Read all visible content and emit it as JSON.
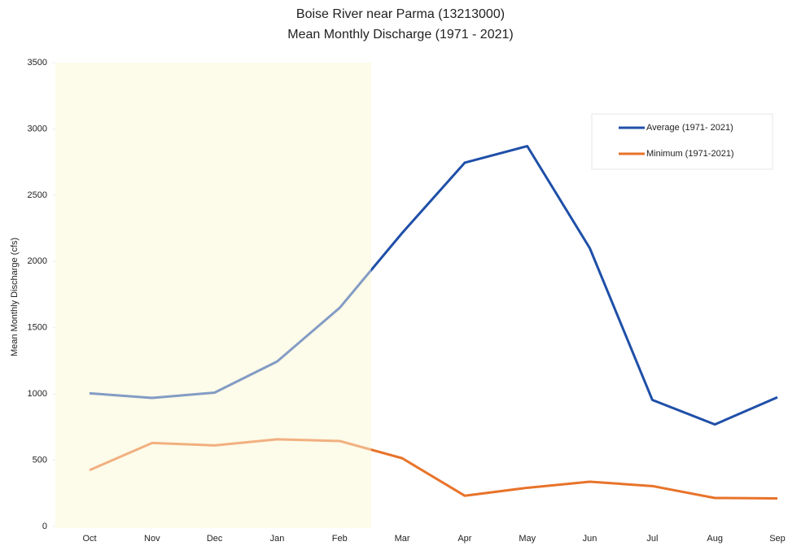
{
  "chart_data": {
    "type": "line",
    "title": "Boise River near Parma (13213000)",
    "subtitle": "Mean Monthly Discharge (1971 - 2021)",
    "y_label": "Mean Monthly Discharge (cfs)",
    "categories": [
      "Oct",
      "Nov",
      "Dec",
      "Jan",
      "Feb",
      "Mar",
      "Apr",
      "May",
      "Jun",
      "Jul",
      "Aug",
      "Sep"
    ],
    "series": [
      {
        "name": "Average (1971- 2021)",
        "color": "#1f4fa8",
        "values": [
          1005,
          970,
          1010,
          1245,
          1650,
          2215,
          2745,
          2870,
          2100,
          955,
          770,
          975
        ]
      },
      {
        "name": "Minimum (1971-2021)",
        "color": "#e8732a",
        "values": [
          425,
          630,
          612,
          658,
          645,
          515,
          232,
          292,
          338,
          305,
          215,
          212
        ]
      }
    ],
    "ylim": [
      0,
      3500
    ],
    "yticks": [
      0,
      500,
      1000,
      1500,
      2000,
      2500,
      3000,
      3500
    ],
    "grid": false,
    "legend": "upper right"
  }
}
